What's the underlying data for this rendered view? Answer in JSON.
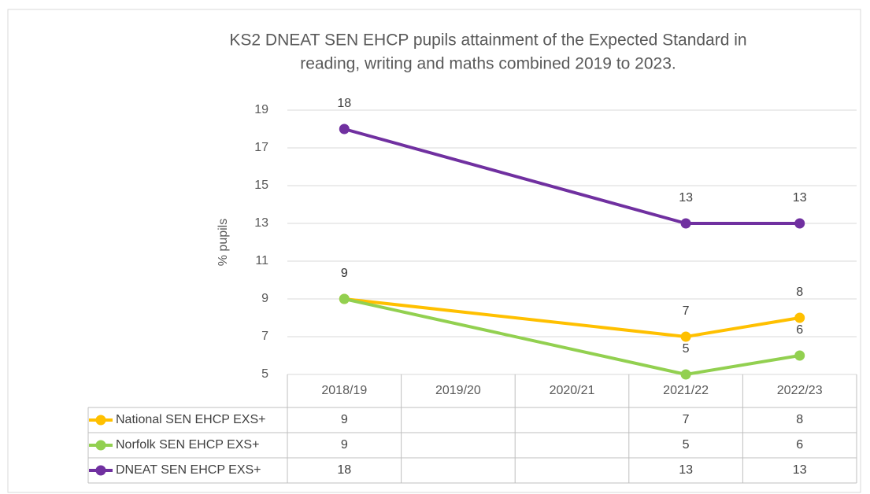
{
  "chart_data": {
    "type": "line",
    "title": [
      "KS2 DNEAT SEN EHCP pupils attainment of the Expected Standard in",
      "reading, writing and maths combined 2019 to 2023."
    ],
    "y_label": "% pupils",
    "categories": [
      "2018/19",
      "2019/20",
      "2020/21",
      "2021/22",
      "2022/23"
    ],
    "series": [
      {
        "name": "National SEN EHCP EXS+",
        "color": "#FFC000",
        "values": [
          9,
          null,
          null,
          7,
          8
        ]
      },
      {
        "name": "Norfolk SEN EHCP EXS+",
        "color": "#92D050",
        "values": [
          9,
          null,
          null,
          5,
          6
        ]
      },
      {
        "name": "DNEAT SEN EHCP EXS+",
        "color": "#7030A0",
        "values": [
          18,
          null,
          null,
          13,
          13
        ]
      }
    ],
    "ylim": [
      5,
      19
    ],
    "yticks": [
      5,
      7,
      9,
      11,
      13,
      15,
      17,
      19
    ],
    "grid": true,
    "connect_gaps": true,
    "data_labels": true,
    "data_table": true
  }
}
